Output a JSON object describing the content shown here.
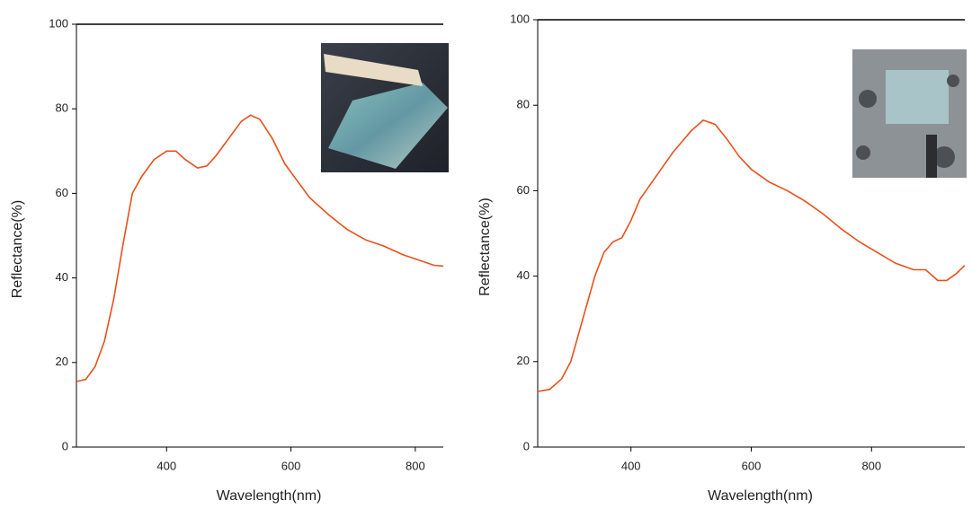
{
  "chart_data": [
    {
      "type": "line",
      "xlabel": "Wavelength(nm)",
      "ylabel": "Reflectance(%)",
      "x": [
        255,
        270,
        285,
        300,
        315,
        330,
        345,
        360,
        380,
        400,
        415,
        430,
        450,
        465,
        480,
        500,
        520,
        535,
        550,
        570,
        590,
        610,
        630,
        660,
        690,
        720,
        750,
        780,
        810,
        830,
        845
      ],
      "series": [
        {
          "color": "#e8501a",
          "values": [
            15.5,
            16,
            19,
            25,
            35,
            48,
            60,
            64,
            68,
            70,
            70,
            68,
            66,
            66.5,
            69,
            73,
            77,
            78.5,
            77.5,
            73,
            67,
            63,
            59,
            55,
            51.5,
            49,
            47.5,
            45.5,
            44,
            43,
            42.8
          ]
        }
      ],
      "xlim": [
        255,
        845
      ],
      "ylim": [
        0,
        100
      ],
      "xticks": [
        400,
        600,
        800
      ],
      "yticks": [
        0,
        20,
        40,
        60,
        80,
        100
      ]
    },
    {
      "type": "line",
      "xlabel": "Wavelength(nm)",
      "ylabel": "Reflectance(%)",
      "x": [
        245,
        265,
        285,
        300,
        320,
        340,
        355,
        370,
        385,
        400,
        415,
        440,
        470,
        500,
        520,
        540,
        560,
        580,
        600,
        630,
        660,
        690,
        720,
        750,
        780,
        810,
        840,
        870,
        890,
        910,
        925,
        940,
        955
      ],
      "series": [
        {
          "color": "#e8501a",
          "values": [
            13,
            13.5,
            16,
            20,
            30,
            40,
            45.5,
            48,
            49,
            53,
            58,
            63,
            69,
            74,
            76.5,
            75.5,
            72,
            68,
            65,
            62,
            60,
            57.5,
            54.5,
            51,
            48,
            45.5,
            43,
            41.5,
            41.5,
            39,
            39,
            40.5,
            42.5
          ]
        }
      ],
      "xlim": [
        245,
        955
      ],
      "ylim": [
        0,
        100
      ],
      "xticks": [
        400,
        600,
        800
      ],
      "yticks": [
        0,
        20,
        40,
        60,
        80,
        100
      ]
    }
  ]
}
